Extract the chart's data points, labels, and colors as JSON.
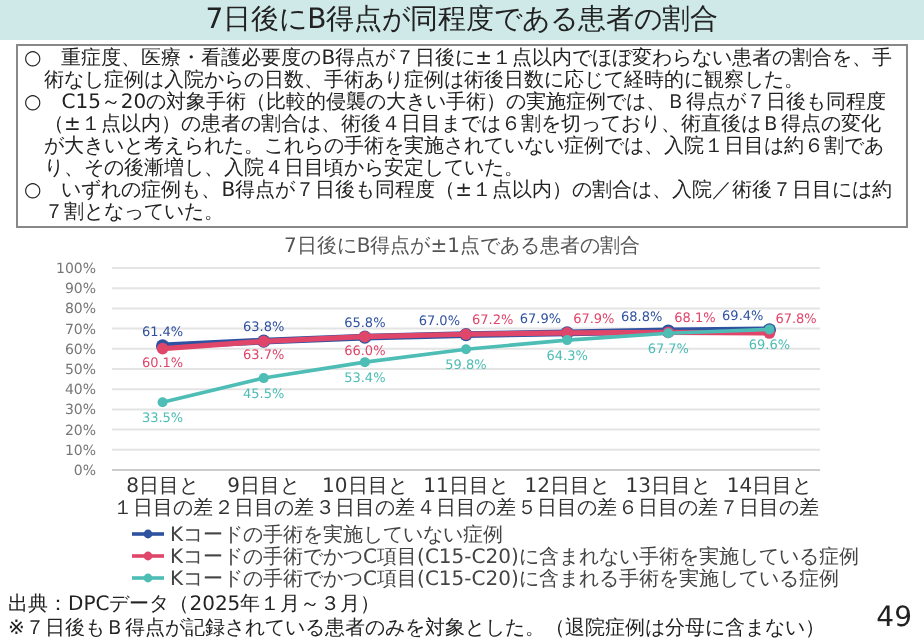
{
  "chart_data": {
    "type": "line",
    "title": "7日後にB得点が同程度である患者の割合",
    "subtitle": "7日後にB得点が±1点である患者の割合",
    "annotations": [
      "○　重症度、医療・看護必要度のB得点が７日後に±１点以内でほぼ変わらない患者の割合を、手術なし症例は入院からの日数、手術あり症例は術後日数に応じて経時的に観察した。",
      "○　C15～20の対象手術（比較的侵襲の大きい手術）の実施症例では、Ｂ得点が７日後も同程度（±１点以内）の患者の割合は、術後４日目までは６割を切っており、術直後はＢ得点の変化が大きいと考えられた。これらの手術を実施されていない症例では、入院１日目は約６割であり、その後漸増し、入院４日目頃から安定していた。",
      "○　いずれの症例も、B得点が７日後も同程度（±１点以内）の割合は、入院／術後７日目には約７割となっていた。",
      "出典：DPCデータ（2025年１月～３月）",
      "※７日後もＢ得点が記録されている患者のみを対象とした。（退院症例は分母に含まない）",
      "49"
    ],
    "categories": [
      "8日目と１日目の差",
      "9日目と２日目の差",
      "10日目と３日目の差",
      "11日目と４日目の差",
      "12日目と５日目の差",
      "13日目と６日目の差",
      "14日目と７日目の差"
    ],
    "series": [
      {
        "name": "Kコードの手術を実施していない症例",
        "color": "#2f52a0",
        "values": [
          61.4,
          63.8,
          65.8,
          67.0,
          67.9,
          68.8,
          69.4
        ],
        "value_labels": [
          "61.4%",
          "63.8%",
          "65.8%",
          "67.0%",
          "67.9%",
          "68.8%",
          "69.4%"
        ]
      },
      {
        "name": "Kコードの手術でかつC項目(C15-C20)に含まれない手術を実施している症例",
        "color": "#e0456a",
        "values": [
          60.1,
          63.7,
          66.0,
          67.2,
          67.9,
          68.1,
          67.8
        ],
        "value_labels": [
          "60.1%",
          "63.7%",
          "66.0%",
          "67.2%",
          "67.9%",
          "68.1%",
          "67.8%"
        ]
      },
      {
        "name": "Kコードの手術でかつC項目(C15-C20)に含まれる手術を実施している症例",
        "color": "#4dbdb5",
        "values": [
          33.5,
          45.5,
          53.4,
          59.8,
          64.3,
          67.7,
          69.6
        ],
        "value_labels": [
          "33.5%",
          "45.5%",
          "53.4%",
          "59.8%",
          "64.3%",
          "67.7%",
          "69.6%"
        ]
      }
    ],
    "ylim": [
      0,
      100
    ],
    "yticks": [
      {
        "value": 0,
        "label": "0%"
      },
      {
        "value": 10,
        "label": "10%"
      },
      {
        "value": 20,
        "label": "20%"
      },
      {
        "value": 30,
        "label": "30%"
      },
      {
        "value": 40,
        "label": "40%"
      },
      {
        "value": 50,
        "label": "50%"
      },
      {
        "value": 60,
        "label": "60%"
      },
      {
        "value": 70,
        "label": "70%"
      },
      {
        "value": 80,
        "label": "80%"
      },
      {
        "value": 90,
        "label": "90%"
      },
      {
        "value": 100,
        "label": "100%"
      }
    ],
    "grid": "y",
    "legend": "bottom",
    "marker": "circle",
    "line_style": "solid"
  }
}
